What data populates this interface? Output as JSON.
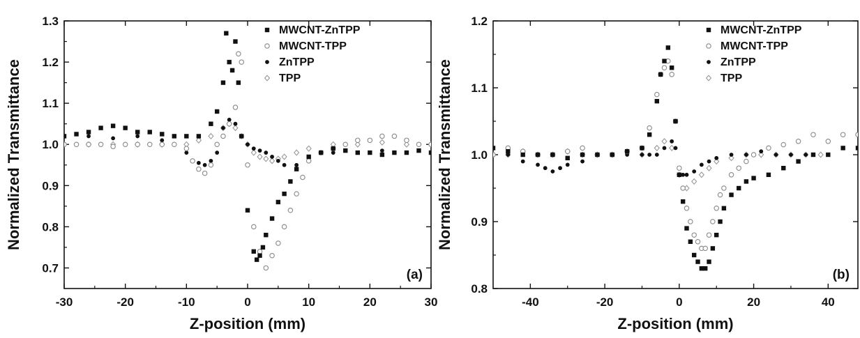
{
  "chart_data": [
    {
      "type": "scatter",
      "panel_label": "(a)",
      "xlabel": "Z-position (mm)",
      "ylabel": "Normalized Transmittance",
      "xlim": [
        -30,
        30
      ],
      "ylim": [
        0.65,
        1.3
      ],
      "xticks": [
        -30,
        -20,
        -10,
        0,
        10,
        20,
        30
      ],
      "yticks": [
        0.7,
        0.8,
        0.9,
        1.0,
        1.1,
        1.2,
        1.3
      ],
      "grid": false,
      "legend_position": "top-right",
      "series": [
        {
          "name": "MWCNT-ZnTPP",
          "marker": "square-filled",
          "x": [
            -30,
            -28,
            -26,
            -24,
            -22,
            -20,
            -18,
            -16,
            -14,
            -12,
            -10,
            -8,
            -6,
            -5,
            -4,
            -3.5,
            -3,
            -2.5,
            -2,
            -1.5,
            -1,
            0,
            1,
            1.5,
            2,
            2.5,
            3,
            4,
            5,
            6,
            7,
            8,
            10,
            12,
            14,
            16,
            18,
            20,
            22,
            24,
            26,
            28,
            30
          ],
          "y": [
            1.02,
            1.025,
            1.03,
            1.04,
            1.045,
            1.04,
            1.03,
            1.03,
            1.025,
            1.02,
            1.02,
            1.02,
            1.05,
            1.08,
            1.15,
            1.27,
            1.2,
            1.18,
            1.25,
            1.15,
            1.02,
            0.84,
            0.74,
            0.72,
            0.73,
            0.75,
            0.78,
            0.82,
            0.86,
            0.88,
            0.91,
            0.94,
            0.97,
            0.98,
            0.99,
            0.985,
            0.98,
            0.98,
            0.975,
            0.98,
            0.98,
            0.985,
            0.98
          ]
        },
        {
          "name": "MWCNT-TPP",
          "marker": "circle-open",
          "x": [
            -30,
            -28,
            -26,
            -24,
            -22,
            -20,
            -18,
            -16,
            -14,
            -12,
            -10,
            -9,
            -8,
            -7,
            -6,
            -5,
            -4,
            -3,
            -2,
            -1.5,
            -1,
            0,
            1,
            2,
            3,
            4,
            5,
            6,
            7,
            8,
            9,
            10,
            12,
            14,
            16,
            18,
            20,
            22,
            24,
            26,
            28,
            30
          ],
          "y": [
            1.0,
            1.0,
            1.0,
            1.0,
            0.995,
            1.0,
            1.0,
            1.0,
            1.0,
            1.0,
            0.99,
            0.96,
            0.94,
            0.93,
            0.95,
            1.0,
            1.02,
            1.05,
            1.09,
            1.22,
            1.2,
            0.95,
            0.8,
            0.74,
            0.7,
            0.73,
            0.76,
            0.8,
            0.84,
            0.88,
            0.92,
            0.96,
            0.98,
            0.99,
            1.0,
            1.01,
            1.01,
            1.02,
            1.02,
            1.01,
            1.0,
            1.0
          ]
        },
        {
          "name": "ZnTPP",
          "marker": "circle-filled",
          "x": [
            -30,
            -26,
            -22,
            -18,
            -14,
            -12,
            -10,
            -9,
            -8,
            -7,
            -6,
            -5,
            -4,
            -3,
            -2,
            -1,
            0,
            1,
            2,
            3,
            4,
            5,
            6,
            8,
            10,
            14,
            18,
            22,
            26,
            30
          ],
          "y": [
            1.02,
            1.02,
            1.015,
            1.02,
            1.01,
            1.0,
            0.98,
            0.96,
            0.955,
            0.95,
            0.96,
            0.98,
            1.04,
            1.06,
            1.05,
            1.02,
            1.0,
            0.99,
            0.985,
            0.98,
            0.97,
            0.96,
            0.95,
            0.95,
            0.97,
            0.98,
            0.98,
            0.985,
            0.98,
            0.98
          ]
        },
        {
          "name": "TPP",
          "marker": "diamond-open",
          "x": [
            -30,
            -26,
            -22,
            -18,
            -14,
            -10,
            -8,
            -6,
            -4,
            -3,
            -2,
            -1,
            0,
            1,
            2,
            3,
            4,
            5,
            6,
            8,
            10,
            14,
            18,
            22,
            26,
            30
          ],
          "y": [
            1.0,
            1.0,
            1.0,
            1.0,
            1.0,
            1.0,
            1.01,
            1.02,
            1.04,
            1.05,
            1.04,
            1.02,
            1.0,
            0.98,
            0.97,
            0.965,
            0.96,
            0.965,
            0.97,
            0.98,
            0.99,
            1.0,
            1.0,
            1.005,
            1.0,
            1.0
          ]
        }
      ]
    },
    {
      "type": "scatter",
      "panel_label": "(b)",
      "xlabel": "Z-position (mm)",
      "ylabel": "Normalized Transmittance",
      "xlim": [
        -50,
        48
      ],
      "ylim": [
        0.8,
        1.2
      ],
      "xticks": [
        -40,
        -20,
        0,
        20,
        40
      ],
      "yticks": [
        0.8,
        0.9,
        1.0,
        1.1,
        1.2
      ],
      "grid": false,
      "legend_position": "top-right",
      "series": [
        {
          "name": "MWCNT-ZnTPP",
          "marker": "square-filled",
          "x": [
            -50,
            -46,
            -42,
            -38,
            -34,
            -30,
            -26,
            -22,
            -18,
            -14,
            -10,
            -8,
            -6,
            -5,
            -4,
            -3,
            -2,
            -1,
            0,
            1,
            2,
            3,
            4,
            5,
            6,
            7,
            8,
            9,
            10,
            11,
            12,
            14,
            16,
            18,
            20,
            24,
            28,
            32,
            36,
            40,
            44,
            48
          ],
          "y": [
            1.01,
            1.005,
            1.0,
            1.0,
            1.0,
            0.995,
            1.0,
            1.0,
            1.0,
            1.005,
            1.01,
            1.03,
            1.08,
            1.12,
            1.14,
            1.16,
            1.13,
            1.05,
            0.97,
            0.93,
            0.89,
            0.87,
            0.85,
            0.84,
            0.83,
            0.83,
            0.84,
            0.86,
            0.88,
            0.9,
            0.92,
            0.94,
            0.95,
            0.96,
            0.965,
            0.97,
            0.98,
            0.99,
            1.0,
            1.0,
            1.01,
            1.01
          ]
        },
        {
          "name": "MWCNT-TPP",
          "marker": "circle-open",
          "x": [
            -50,
            -46,
            -42,
            -38,
            -34,
            -30,
            -26,
            -22,
            -18,
            -14,
            -10,
            -8,
            -6,
            -5,
            -4,
            -3,
            -2,
            -1,
            0,
            1,
            2,
            3,
            4,
            5,
            6,
            7,
            8,
            9,
            10,
            11,
            12,
            14,
            16,
            18,
            20,
            24,
            28,
            32,
            36,
            40,
            44,
            48
          ],
          "y": [
            1.0,
            1.01,
            1.005,
            1.0,
            1.0,
            1.005,
            1.01,
            1.0,
            1.0,
            1.005,
            1.01,
            1.04,
            1.09,
            1.12,
            1.13,
            1.14,
            1.12,
            1.05,
            0.98,
            0.95,
            0.92,
            0.9,
            0.88,
            0.87,
            0.86,
            0.86,
            0.88,
            0.9,
            0.92,
            0.94,
            0.95,
            0.97,
            0.98,
            0.99,
            1.0,
            1.01,
            1.015,
            1.02,
            1.03,
            1.02,
            1.03,
            1.03
          ]
        },
        {
          "name": "ZnTPP",
          "marker": "circle-filled",
          "x": [
            -50,
            -46,
            -42,
            -38,
            -36,
            -34,
            -32,
            -30,
            -26,
            -22,
            -18,
            -14,
            -10,
            -8,
            -6,
            -4,
            -2,
            -1,
            0,
            1,
            2,
            4,
            6,
            8,
            10,
            14,
            18,
            22,
            26,
            30,
            34
          ],
          "y": [
            1.0,
            1.0,
            0.99,
            0.985,
            0.98,
            0.975,
            0.98,
            0.985,
            0.99,
            1.0,
            1.0,
            1.0,
            1.0,
            1.0,
            1.0,
            1.01,
            1.02,
            1.01,
            0.98,
            0.97,
            0.97,
            0.975,
            0.985,
            0.99,
            0.995,
            1.0,
            1.0,
            1.005,
            1.0,
            1.0,
            1.0
          ]
        },
        {
          "name": "TPP",
          "marker": "diamond-open",
          "x": [
            -50,
            -46,
            -42,
            -38,
            -34,
            -30,
            -26,
            -22,
            -18,
            -14,
            -10,
            -6,
            -4,
            -2,
            0,
            2,
            4,
            6,
            8,
            10,
            14,
            18,
            22,
            26,
            30,
            34,
            38
          ],
          "y": [
            1.0,
            1.0,
            1.005,
            1.0,
            1.0,
            1.005,
            1.0,
            1.0,
            1.0,
            1.005,
            1.0,
            1.01,
            1.02,
            1.01,
            0.97,
            0.95,
            0.96,
            0.97,
            0.98,
            0.99,
            0.995,
            1.0,
            1.0,
            1.0,
            1.0,
            1.0,
            1.0
          ]
        }
      ]
    }
  ]
}
